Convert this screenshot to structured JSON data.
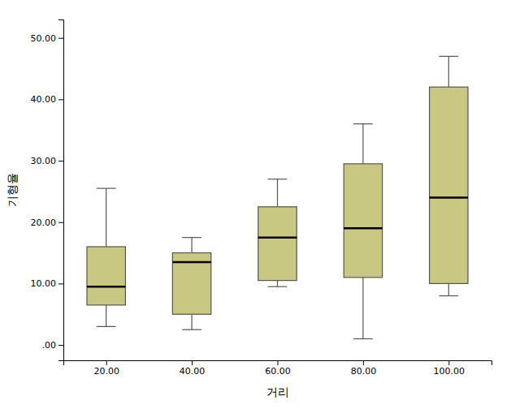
{
  "chart_data": {
    "type": "box",
    "categories": [
      "20.00",
      "40.00",
      "60.00",
      "80.00",
      "100.00"
    ],
    "boxes": [
      {
        "whislo": 3.0,
        "q1": 6.5,
        "med": 9.5,
        "q3": 16.0,
        "whishi": 25.5
      },
      {
        "whislo": 2.5,
        "q1": 5.0,
        "med": 13.5,
        "q3": 15.0,
        "whishi": 17.5
      },
      {
        "whislo": 9.5,
        "q1": 10.5,
        "med": 17.5,
        "q3": 22.5,
        "whishi": 27.0
      },
      {
        "whislo": 1.0,
        "q1": 11.0,
        "med": 19.0,
        "q3": 29.5,
        "whishi": 36.0
      },
      {
        "whislo": 8.0,
        "q1": 10.0,
        "med": 24.0,
        "q3": 42.0,
        "whishi": 47.0
      }
    ],
    "color": "#c8c882",
    "xlabel": "거리",
    "ylabel": "기형율",
    "ylim": [
      -2.5,
      53
    ],
    "yticks": [
      {
        "value": 0.0,
        "label": ".00"
      },
      {
        "value": 10.0,
        "label": "10.00"
      },
      {
        "value": 20.0,
        "label": "20.00"
      },
      {
        "value": 30.0,
        "label": "30.00"
      },
      {
        "value": 40.0,
        "label": "40.00"
      },
      {
        "value": 50.0,
        "label": "50.00"
      }
    ],
    "grid": false
  }
}
